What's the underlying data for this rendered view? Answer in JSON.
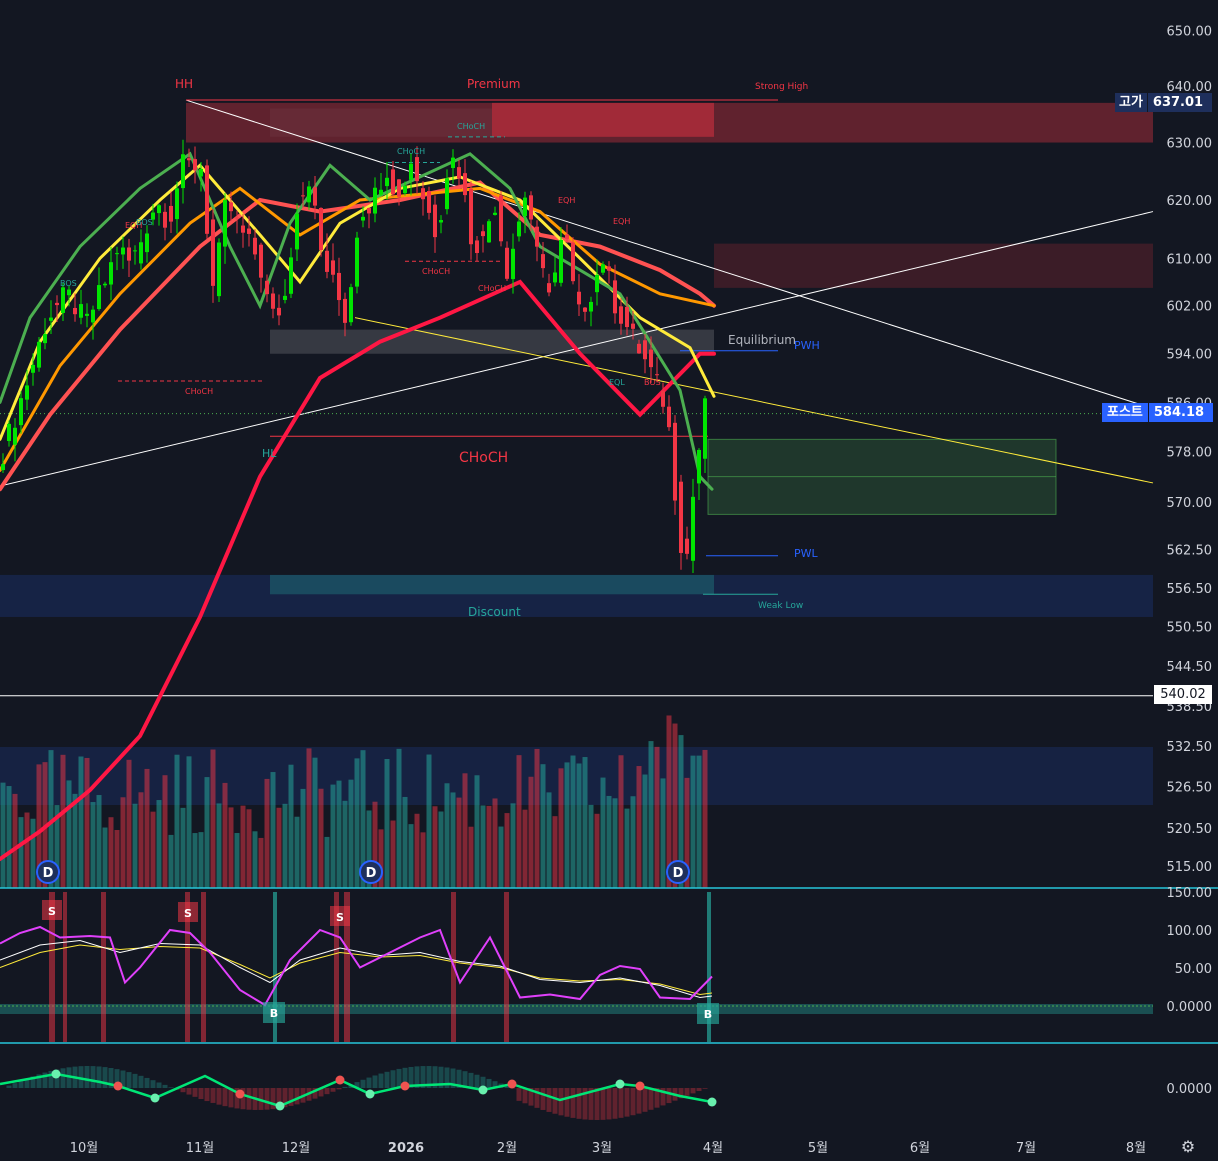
{
  "chart_data": {
    "type": "candlestick",
    "title": "",
    "xlabel": "",
    "ylabel": "",
    "y_axis": {
      "ticks": [
        "650.00",
        "640.00",
        "630.00",
        "620.00",
        "610.00",
        "602.00",
        "594.00",
        "586.00",
        "578.00",
        "570.00",
        "562.50",
        "556.50",
        "550.50",
        "544.50",
        "538.50",
        "532.50",
        "526.50",
        "520.50",
        "515.00"
      ],
      "scale": "log"
    },
    "x_axis": {
      "ticks": [
        "10월",
        "11월",
        "12월",
        "2026",
        "2월",
        "3월",
        "4월",
        "5월",
        "6월",
        "7월",
        "8월"
      ]
    },
    "price_labels": {
      "high": {
        "name": "고가",
        "value": "637.01",
        "color": "#1e2f5c"
      },
      "last": {
        "name": "포스트",
        "value": "584.18",
        "color": "#2962ff"
      },
      "line": {
        "value": "540.02"
      }
    },
    "annotations": {
      "hh": "HH",
      "hl": "HL",
      "premium": "Premium",
      "discount": "Discount",
      "equilibrium": "Equilibrium",
      "strong_high": "Strong High",
      "weak_low": "Weak Low",
      "pwh": "PWH",
      "pwl": "PWL",
      "choch_big": "CHoCH",
      "small": [
        "BOS",
        "EQH",
        "BOS",
        "CHoCH",
        "CHoCH",
        "CHoCH",
        "CHoCH",
        "CHoCH",
        "EQH",
        "EQH",
        "EQL",
        "BOS"
      ]
    },
    "zones": {
      "premium_zone": [
        630,
        637
      ],
      "supply_zone": [
        605,
        612.5
      ],
      "equilibrium_zone": [
        594,
        598
      ],
      "demand_zone_green": [
        568,
        580
      ],
      "discount_zone": [
        552,
        558.5
      ],
      "discount_teal": [
        555.5,
        558.5
      ]
    },
    "dividend_markers": [
      "D",
      "D",
      "D"
    ],
    "oscillator": {
      "ticks": [
        "150.00",
        "100.00",
        "50.00",
        "0.0000"
      ],
      "signals": [
        "S",
        "S",
        "S",
        "B",
        "B"
      ]
    },
    "momentum": {
      "ticks": [
        "0.0000"
      ]
    },
    "colors": {
      "background": "#131722",
      "up": "#00e600",
      "down": "#f23645",
      "ema_fast": "#4caf50",
      "ema_mid": "#ffeb3b",
      "ema_slow": "#ff9800",
      "ema_long": "#ff1744",
      "grid_text": "#d1d4dc"
    }
  }
}
